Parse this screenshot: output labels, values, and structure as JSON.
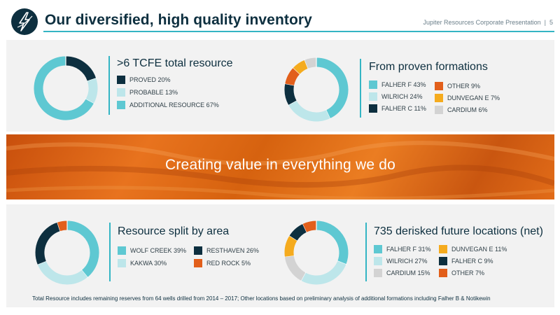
{
  "header": {
    "title": "Our diversified, high quality inventory",
    "presentation": "Jupiter Resources Corporate Presentation",
    "separator": "|",
    "page_number": "5"
  },
  "banner": {
    "text": "Creating value in everything we do"
  },
  "footnote": "Total Resource includes remaining reserves from 64 wells drilled from 2014 – 2017; Other locations based on preliminary analysis of additional formations including Falher B & Notikewin",
  "chart_data": [
    {
      "type": "pie",
      "title": ">6 TCFE total resource",
      "categories": [
        "PROVED",
        "PROBABLE",
        "ADDITIONAL RESOURCE"
      ],
      "values": [
        20,
        13,
        67
      ],
      "labels": [
        "PROVED 20%",
        "PROBABLE 13%",
        "ADDITIONAL RESOURCE 67%"
      ],
      "colors": [
        "#0d2f3f",
        "#bde6ea",
        "#5ec8d2"
      ],
      "legend": "right"
    },
    {
      "type": "pie",
      "title": "From proven formations",
      "categories": [
        "FALHER F",
        "WILRICH",
        "FALHER C",
        "OTHER",
        "DUNVEGAN E",
        "CARDIUM"
      ],
      "values": [
        43,
        24,
        11,
        9,
        7,
        6
      ],
      "labels": [
        "FALHER F 43%",
        "WILRICH 24%",
        "FALHER C 11%",
        "OTHER 9%",
        "DUNVEGAN E 7%",
        "CARDIUM 6%"
      ],
      "colors": [
        "#5ec8d2",
        "#bde6ea",
        "#0d2f3f",
        "#e25f1b",
        "#f5ab1e",
        "#d3d3d3"
      ],
      "legend": "right"
    },
    {
      "type": "pie",
      "title": "Resource split by area",
      "categories": [
        "WOLF CREEK",
        "KAKWA",
        "RESTHAVEN",
        "RED ROCK"
      ],
      "values": [
        39,
        30,
        26,
        5
      ],
      "labels": [
        "WOLF CREEK 39%",
        "KAKWA 30%",
        "RESTHAVEN 26%",
        "RED ROCK 5%"
      ],
      "colors": [
        "#5ec8d2",
        "#bde6ea",
        "#0d2f3f",
        "#e25f1b"
      ],
      "legend": "right"
    },
    {
      "type": "pie",
      "title": "735 derisked future locations (net)",
      "categories": [
        "FALHER F",
        "WILRICH",
        "CARDIUM",
        "DUNVEGAN E",
        "FALHER C",
        "OTHER"
      ],
      "values": [
        31,
        27,
        15,
        11,
        9,
        7
      ],
      "labels": [
        "FALHER F 31%",
        "WILRICH 27%",
        "CARDIUM 15%",
        "DUNVEGAN E 11%",
        "FALHER C 9%",
        "OTHER 7%"
      ],
      "colors": [
        "#5ec8d2",
        "#bde6ea",
        "#d3d3d3",
        "#f5ab1e",
        "#0d2f3f",
        "#e25f1b"
      ],
      "legend": "right"
    }
  ]
}
